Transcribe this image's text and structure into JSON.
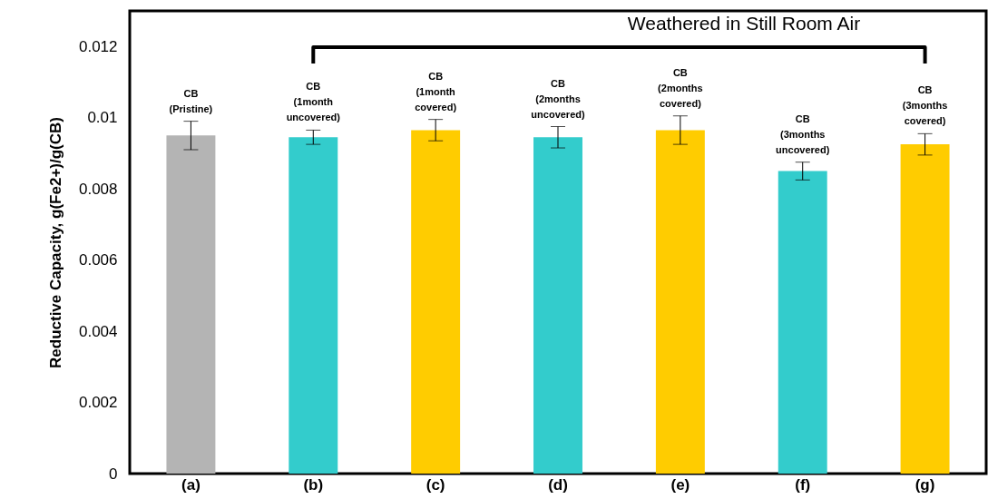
{
  "chart_data": {
    "type": "bar",
    "ylabel": "Reductive Capacity, g(Fe2+)/g(CB)",
    "categories": [
      "(a)",
      "(b)",
      "(c)",
      "(d)",
      "(e)",
      "(f)",
      "(g)"
    ],
    "values": [
      0.0095,
      0.00945,
      0.00965,
      0.00945,
      0.00965,
      0.0085,
      0.00925
    ],
    "errors": [
      0.0004,
      0.0002,
      0.0003,
      0.0003,
      0.0004,
      0.00025,
      0.0003
    ],
    "colors": [
      "#b4b4b4",
      "#33cccc",
      "#ffcc00",
      "#33cccc",
      "#ffcc00",
      "#33cccc",
      "#ffcc00"
    ],
    "ylim": [
      0,
      0.013
    ],
    "yticks": [
      0,
      0.002,
      0.004,
      0.006,
      0.008,
      0.01,
      0.012
    ],
    "grid": false,
    "legend": false,
    "annotations": [
      {
        "text": "CB\n(Pristine)",
        "x": "(a)",
        "y": 0.0095
      },
      {
        "text": "CB\n(1month\nuncovered)",
        "x": "(b)",
        "y": 0.00945
      },
      {
        "text": "CB\n(1month\ncovered)",
        "x": "(c)",
        "y": 0.00965
      },
      {
        "text": "CB\n(2months\nuncovered)",
        "x": "(d)",
        "y": 0.00945
      },
      {
        "text": "CB\n(2months\ncovered)",
        "x": "(e)",
        "y": 0.00965
      },
      {
        "text": "CB\n(3months\nuncovered)",
        "x": "(f)",
        "y": 0.0085
      },
      {
        "text": "CB\n(3months\ncovered)",
        "x": "(g)",
        "y": 0.00925
      },
      "Weathered in Still Room Air"
    ]
  }
}
